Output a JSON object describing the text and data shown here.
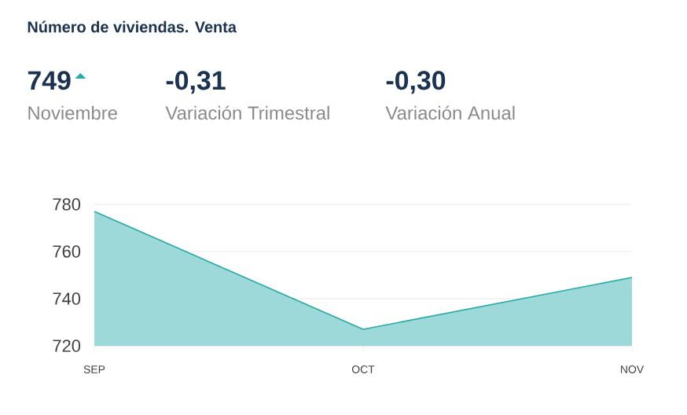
{
  "chart_data": {
    "type": "area",
    "title": "Número de viviendas. Venta",
    "annotations": [
      "749",
      "Noviembre",
      "-0,31",
      "Variación Trimestral",
      "-0,30",
      "Variación Anual"
    ],
    "categories": [
      "SEP",
      "OCT",
      "NOV"
    ],
    "values": [
      777,
      727,
      749
    ],
    "color": "#26aaa8",
    "ylim": [
      720,
      780
    ],
    "yticks": [
      720,
      740,
      760,
      780
    ],
    "grid": "y"
  }
}
